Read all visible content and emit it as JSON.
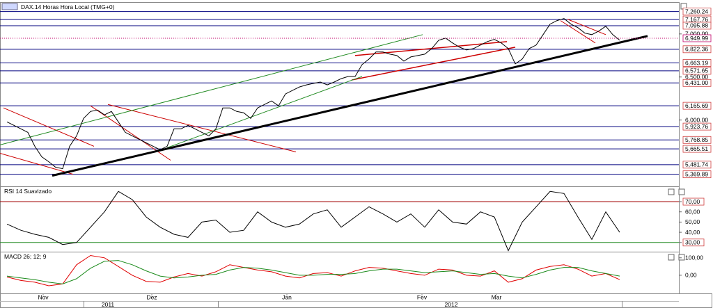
{
  "chart_data": [
    {
      "type": "line",
      "title": "DAX.14 Horas Hora Local (TMG+0)",
      "color": "#000000",
      "xlim": [
        0,
        975
      ],
      "ylim": [
        5230,
        7370
      ],
      "x": [
        10,
        20,
        30,
        40,
        50,
        60,
        70,
        80,
        90,
        100,
        110,
        120,
        130,
        140,
        150,
        160,
        170,
        180,
        190,
        200,
        210,
        220,
        230,
        240,
        250,
        260,
        270,
        280,
        290,
        300,
        310,
        320,
        330,
        340,
        350,
        360,
        370,
        380,
        390,
        400,
        410,
        420,
        430,
        440,
        450,
        460,
        470,
        480,
        490,
        500,
        510,
        520,
        530,
        540,
        550,
        560,
        570,
        580,
        590,
        600,
        610,
        620,
        630,
        640,
        650,
        660,
        670,
        680,
        690,
        700,
        710,
        720,
        730,
        740,
        750,
        760,
        770,
        780,
        790,
        800,
        810,
        820,
        830,
        840,
        850,
        860,
        870,
        880,
        890
      ],
      "values": [
        5979,
        5938,
        5898,
        5857,
        5695,
        5573,
        5516,
        5451,
        5435,
        5695,
        5816,
        6019,
        6100,
        6116,
        6060,
        6100,
        5979,
        5857,
        5816,
        5776,
        5735,
        5695,
        5654,
        5695,
        5898,
        5898,
        5938,
        5898,
        5857,
        5816,
        5898,
        6141,
        6141,
        6100,
        6084,
        6019,
        6141,
        6181,
        6222,
        6165,
        6303,
        6344,
        6384,
        6408,
        6425,
        6441,
        6408,
        6441,
        6481,
        6506,
        6506,
        6644,
        6709,
        6790,
        6790,
        6765,
        6749,
        6684,
        6733,
        6749,
        6765,
        6830,
        6927,
        6952,
        6895,
        6846,
        6814,
        6830,
        6871,
        6911,
        6936,
        6895,
        6830,
        6652,
        6709,
        6830,
        6871,
        6992,
        7114,
        7155,
        7179,
        7114,
        7073,
        7009,
        6992,
        7033,
        7090,
        6992,
        6927
      ],
      "yticks": [
        {
          "value": 7000,
          "label": "7,000.00"
        },
        {
          "value": 6500,
          "label": "6,500.00"
        },
        {
          "value": 6000,
          "label": "6,000.00"
        }
      ],
      "levels": [
        {
          "value": 7260.24,
          "label": "7,260.24"
        },
        {
          "value": 7167.76,
          "label": "7,167.76"
        },
        {
          "value": 7095.88,
          "label": "7,095.88"
        },
        {
          "value": 6822.36,
          "label": "6,822.36"
        },
        {
          "value": 6663.19,
          "label": "6,663.19"
        },
        {
          "value": 6571.65,
          "label": "6,571.65"
        },
        {
          "value": 6431.0,
          "label": "6,431.00"
        },
        {
          "value": 6165.69,
          "label": "6,165.69"
        },
        {
          "value": 5923.76,
          "label": "5,923.76"
        },
        {
          "value": 5768.85,
          "label": "5,768.85"
        },
        {
          "value": 5665.51,
          "label": "5,665.51"
        },
        {
          "value": 5481.74,
          "label": "5,481.74"
        },
        {
          "value": 5369.89,
          "label": "5,369.89"
        }
      ],
      "level_color": "#00007f",
      "last_price": {
        "value": 6949.99,
        "label": "6,949.99",
        "color": "#c0006a"
      },
      "trendlines": [
        {
          "x": [
            5,
            135
          ],
          "y": [
            6141,
            5695
          ],
          "color": "#cc0000",
          "width": 1
        },
        {
          "x": [
            0,
            105
          ],
          "y": [
            5614,
            5370
          ],
          "color": "#cc0000",
          "width": 1
        },
        {
          "x": [
            130,
            245
          ],
          "y": [
            6165,
            5533
          ],
          "color": "#cc0000",
          "width": 1
        },
        {
          "x": [
            155,
            425
          ],
          "y": [
            6181,
            5630
          ],
          "color": "#cc0000",
          "width": 1
        },
        {
          "x": [
            510,
            728
          ],
          "y": [
            6749,
            6911
          ],
          "color": "#cc0000",
          "width": 1.5
        },
        {
          "x": [
            505,
            740
          ],
          "y": [
            6465,
            6846
          ],
          "color": "#cc0000",
          "width": 1.5
        },
        {
          "x": [
            815,
            870
          ],
          "y": [
            7171,
            6992
          ],
          "color": "#cc0000",
          "width": 1
        },
        {
          "x": [
            805,
            855
          ],
          "y": [
            7155,
            6895
          ],
          "color": "#cc0000",
          "width": 1
        },
        {
          "x": [
            0,
            607
          ],
          "y": [
            5711,
            6992
          ],
          "color": "#228b22",
          "width": 1
        },
        {
          "x": [
            240,
            520
          ],
          "y": [
            5678,
            6506
          ],
          "color": "#228b22",
          "width": 1
        },
        {
          "x": [
            75,
            930
          ],
          "y": [
            5354,
            6976
          ],
          "color": "#000000",
          "width": 3
        }
      ]
    },
    {
      "type": "line",
      "title": "RSI 14 Suavizado",
      "color": "#000000",
      "xlim": [
        0,
        975
      ],
      "ylim": [
        21,
        85
      ],
      "x": [
        10,
        30,
        50,
        70,
        90,
        110,
        130,
        150,
        170,
        190,
        210,
        230,
        250,
        270,
        290,
        310,
        330,
        350,
        370,
        390,
        410,
        430,
        450,
        470,
        490,
        510,
        530,
        550,
        570,
        590,
        610,
        630,
        650,
        670,
        690,
        710,
        730,
        750,
        770,
        790,
        810,
        830,
        850,
        870,
        890
      ],
      "values": [
        48,
        42,
        38,
        35,
        28,
        30,
        45,
        60,
        80,
        72,
        55,
        45,
        38,
        35,
        50,
        52,
        40,
        42,
        60,
        50,
        45,
        48,
        58,
        62,
        45,
        55,
        65,
        58,
        50,
        58,
        45,
        62,
        50,
        48,
        60,
        55,
        22,
        50,
        65,
        80,
        78,
        55,
        33,
        60,
        40
      ],
      "yticks": [
        {
          "value": 70,
          "label": "70,00",
          "color": "#a00000"
        },
        {
          "value": 60,
          "label": "60,00"
        },
        {
          "value": 50,
          "label": "50,00"
        },
        {
          "value": 40,
          "label": "40,00"
        },
        {
          "value": 30,
          "label": "30,00",
          "color": "#228b22"
        }
      ]
    },
    {
      "type": "line",
      "title": "MACD 26; 12; 9",
      "xlim": [
        0,
        975
      ],
      "ylim": [
        -104,
        135
      ],
      "x": [
        10,
        30,
        50,
        70,
        90,
        110,
        130,
        150,
        170,
        190,
        210,
        230,
        250,
        270,
        290,
        310,
        330,
        350,
        370,
        390,
        410,
        430,
        450,
        470,
        490,
        510,
        530,
        550,
        570,
        590,
        610,
        630,
        650,
        670,
        690,
        710,
        730,
        750,
        770,
        790,
        810,
        830,
        850,
        870,
        890
      ],
      "series": [
        {
          "color": "#e00000",
          "values": [
            -10,
            -30,
            -40,
            -60,
            -50,
            60,
            113,
            100,
            50,
            0,
            -35,
            -40,
            -10,
            10,
            -5,
            20,
            60,
            45,
            30,
            20,
            -5,
            -15,
            10,
            15,
            -5,
            25,
            45,
            40,
            25,
            10,
            0,
            35,
            30,
            0,
            -5,
            25,
            -40,
            -20,
            30,
            50,
            60,
            35,
            -5,
            10,
            -25
          ]
        },
        {
          "color": "#1a8a1a",
          "values": [
            -5,
            -15,
            -25,
            -40,
            -50,
            -20,
            40,
            80,
            85,
            60,
            25,
            -5,
            -15,
            -10,
            0,
            5,
            30,
            45,
            40,
            30,
            15,
            0,
            0,
            5,
            5,
            10,
            25,
            35,
            35,
            25,
            15,
            20,
            25,
            15,
            5,
            10,
            -5,
            -15,
            5,
            30,
            45,
            45,
            25,
            10,
            -5
          ]
        }
      ],
      "yticks": [
        {
          "value": 100,
          "label": "100,00"
        },
        {
          "value": 0,
          "label": "0,00"
        }
      ],
      "xticks": [
        {
          "value": 62,
          "label": "Nov"
        },
        {
          "value": 218,
          "label": "Dez"
        },
        {
          "value": 412,
          "label": "Jan"
        },
        {
          "value": 606,
          "label": "Fev"
        },
        {
          "value": 713,
          "label": "Mar"
        }
      ],
      "year_ticks": [
        {
          "value": 155,
          "label": "2011"
        },
        {
          "value": 648,
          "label": "2012"
        }
      ]
    }
  ]
}
